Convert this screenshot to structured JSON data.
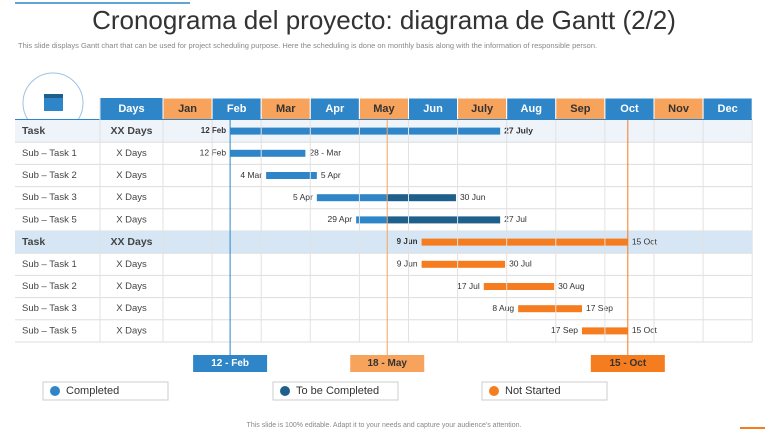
{
  "header": {
    "title": "Cronograma del proyecto: diagrama de Gantt (2/2)",
    "subtitle": "This slide displays Gantt chart that can be used for project scheduling purpose. Here the scheduling is done on monthly basis along with the information of responsible person."
  },
  "chart_data": {
    "type": "gantt",
    "days_header": "Days",
    "categories": [
      "Jan",
      "Feb",
      "Mar",
      "Apr",
      "May",
      "Jun",
      "July",
      "Aug",
      "Sep",
      "Oct",
      "Nov",
      "Dec"
    ],
    "groups": [
      {
        "task": {
          "label": "Task",
          "days": "XX Days",
          "start": "12 Feb",
          "end": "27 July",
          "colors": [
            "#2e86c8"
          ]
        },
        "subtasks": [
          {
            "label": "Sub – Task 1",
            "days": "X Days",
            "start": "12 Feb",
            "end": "28 - Mar",
            "colors": [
              "#2e86c8"
            ]
          },
          {
            "label": "Sub – Task 2",
            "days": "X Days",
            "start": "4 Mar",
            "end": "5 Apr",
            "colors": [
              "#2e86c8"
            ]
          },
          {
            "label": "Sub – Task 3",
            "days": "X Days",
            "start": "5 Apr",
            "end": "30 Jun",
            "colors": [
              "#2e86c8",
              "#1f5f8b"
            ]
          },
          {
            "label": "Sub – Task 5",
            "days": "X Days",
            "start": "29 Apr",
            "end": "27 Jul",
            "colors": [
              "#2e86c8",
              "#1f5f8b"
            ]
          }
        ]
      },
      {
        "task": {
          "label": "Task",
          "days": "XX Days",
          "start": "9 Jun",
          "end": "15 Oct",
          "colors": [
            "#f57c1f"
          ]
        },
        "subtasks": [
          {
            "label": "Sub – Task 1",
            "days": "X Days",
            "start": "9 Jun",
            "end": "30 Jul",
            "colors": [
              "#f57c1f"
            ]
          },
          {
            "label": "Sub – Task 2",
            "days": "X Days",
            "start": "17 Jul",
            "end": "30 Aug",
            "colors": [
              "#f57c1f"
            ]
          },
          {
            "label": "Sub – Task 3",
            "days": "X Days",
            "start": "8 Aug",
            "end": "17 Sep",
            "colors": [
              "#f57c1f"
            ]
          },
          {
            "label": "Sub – Task 5",
            "days": "X Days",
            "start": "17 Sep",
            "end": "15 Oct",
            "colors": [
              "#f57c1f"
            ]
          }
        ]
      }
    ],
    "milestones": [
      {
        "label": "12 - Feb",
        "color": "#2e86c8"
      },
      {
        "label": "18 - May",
        "color": "#f7a35c"
      },
      {
        "label": "15 - Oct",
        "color": "#f57c1f"
      }
    ],
    "legend": [
      {
        "name": "Completed",
        "color": "#2e86c8"
      },
      {
        "name": "To be Completed",
        "color": "#1f5f8b"
      },
      {
        "name": "Not Started",
        "color": "#f57c1f"
      }
    ]
  },
  "footer": "This slide is 100% editable. Adapt it to your needs and capture your audience's attention."
}
